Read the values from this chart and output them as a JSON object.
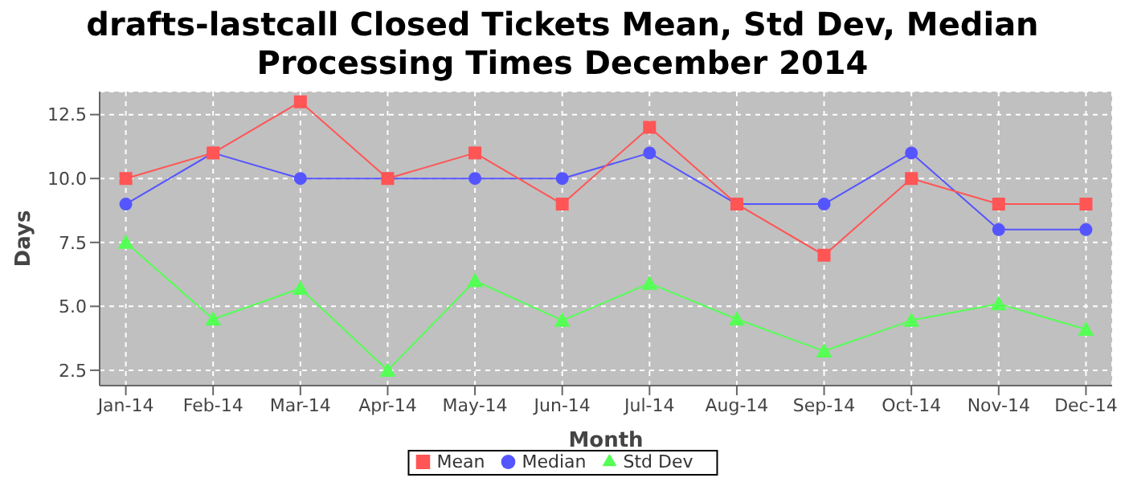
{
  "chart_data": {
    "type": "line",
    "title": "drafts-lastcall Closed Tickets Mean, Std Dev, Median Processing Times December 2014",
    "xlabel": "Month",
    "ylabel": "Days",
    "categories": [
      "Jan-14",
      "Feb-14",
      "Mar-14",
      "Apr-14",
      "May-14",
      "Jun-14",
      "Jul-14",
      "Aug-14",
      "Sep-14",
      "Oct-14",
      "Nov-14",
      "Dec-14"
    ],
    "series": [
      {
        "name": "Mean",
        "color": "#ff5555",
        "marker": "square",
        "values": [
          10,
          11,
          13,
          10,
          11,
          9,
          12,
          9,
          7,
          10,
          9,
          9
        ]
      },
      {
        "name": "Median",
        "color": "#5555ff",
        "marker": "circle",
        "values": [
          9,
          11,
          10,
          10,
          10,
          10,
          11,
          9,
          9,
          11,
          8,
          8
        ]
      },
      {
        "name": "Std Dev",
        "color": "#55ff55",
        "marker": "triangle",
        "values": [
          7.5,
          4.5,
          5.7,
          2.5,
          6.0,
          4.45,
          5.9,
          4.5,
          3.25,
          4.45,
          5.1,
          4.1
        ]
      }
    ],
    "ylim": [
      1.9,
      13.4
    ],
    "yticks": [
      {
        "value": 2.5,
        "label": "2.5"
      },
      {
        "value": 5,
        "label": "5.0"
      },
      {
        "value": 7.5,
        "label": "7.5"
      },
      {
        "value": 10,
        "label": "10.0"
      },
      {
        "value": 12.5,
        "label": "12.5"
      }
    ],
    "grid": true,
    "legend": "bottom"
  }
}
